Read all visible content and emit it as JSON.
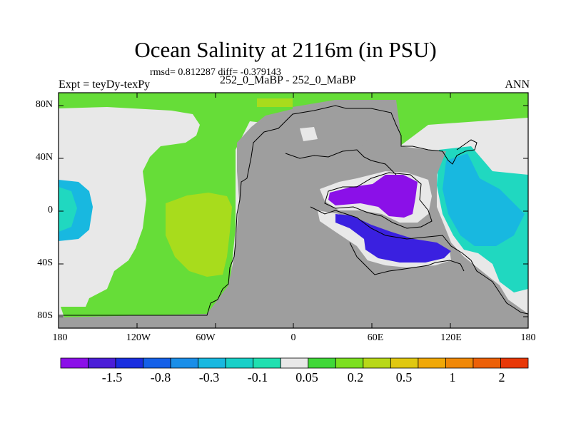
{
  "title": "Ocean Salinity at 2116m (in PSU)",
  "stats": "rmsd= 0.812287 diff= -0.379143",
  "experiment": "Expt = teyDy-texPy",
  "case": "252_0_MaBP - 252_0_MaBP",
  "season": "ANN",
  "axes": {
    "y_ticks": [
      "80N",
      "40N",
      "0",
      "40S",
      "80S"
    ],
    "x_ticks": [
      "180",
      "120W",
      "60W",
      "0",
      "60E",
      "120E",
      "180"
    ]
  },
  "colorbar": {
    "labels": [
      "-1.5",
      "-0.8",
      "-0.3",
      "-0.1",
      "0.05",
      "0.2",
      "0.5",
      "1",
      "2"
    ],
    "colors": [
      "#8b10e8",
      "#4b1ed8",
      "#1a2ee0",
      "#1460e8",
      "#1a8ee8",
      "#18b8e0",
      "#18d0c8",
      "#20e0b0",
      "#e8e8e8",
      "#40d838",
      "#7ce020",
      "#b8d818",
      "#e0c810",
      "#f0a808",
      "#f08808",
      "#ec6008",
      "#e83808"
    ]
  },
  "colors": {
    "land": "#9e9e9e",
    "near_zero": "#e8e8e8",
    "positive_low": "#66dd38",
    "positive_mid": "#a8dc1c",
    "negative_low": "#20d8c0",
    "negative_mid": "#18b8e0",
    "negative_strong": "#3a20e0",
    "negative_extreme": "#8b10e8",
    "coastline": "#000000"
  }
}
